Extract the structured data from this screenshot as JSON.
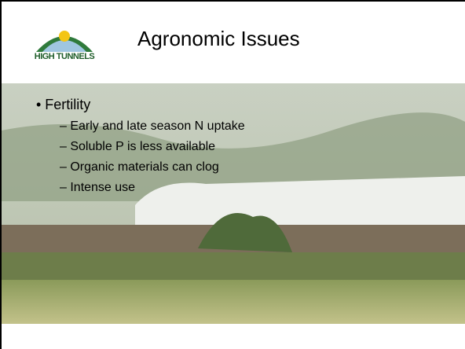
{
  "header": {
    "title": "Agronomic Issues",
    "logo_text": "HIGH TUNNELS"
  },
  "bullets": [
    {
      "text": "• Fertility",
      "sub": [
        "– Early and late season N uptake",
        "– Soluble P is less available",
        "– Organic materials can clog",
        "– Intense use"
      ]
    }
  ]
}
